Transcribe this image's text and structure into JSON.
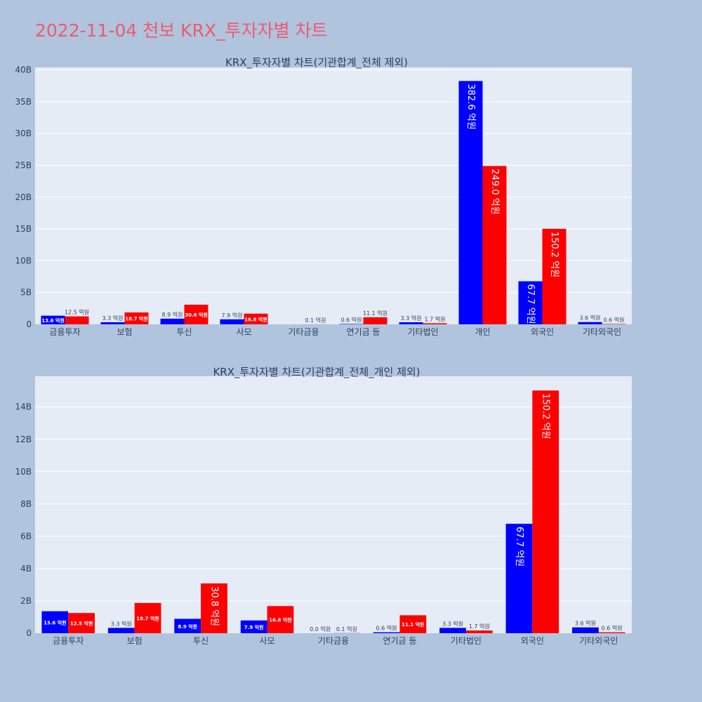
{
  "page": {
    "title": "2022-11-04 천보 KRX_투자자별 차트",
    "background": "#b0c4de",
    "title_color": "#ef5a6f"
  },
  "colors": {
    "series1": "#0000ff",
    "series2": "#ff0000",
    "plot_bg": "#e5ecf6",
    "text": "#2a3f5f"
  },
  "chart_data": [
    {
      "type": "bar",
      "title": "KRX_투자자별 차트(기관합계_전체 제외)",
      "categories": [
        "금융투자",
        "보험",
        "투신",
        "사모",
        "기타금융",
        "연기금 등",
        "기타법인",
        "개인",
        "외국인",
        "기타외국인"
      ],
      "series": [
        {
          "color": "#0000ff",
          "values": [
            1.36,
            0.33,
            0.89,
            0.79,
            0.0,
            0.06,
            0.33,
            38.26,
            6.77,
            0.36
          ],
          "labels": [
            "13.6 억원",
            "3.3 억원",
            "8.9 억원",
            "7.9 억원",
            "",
            "0.6 억원",
            "3.3 억원",
            "382.6 억원",
            "67.7 억원",
            "3.6 억원"
          ]
        },
        {
          "color": "#ff0000",
          "values": [
            1.25,
            1.87,
            3.08,
            1.68,
            0.01,
            1.11,
            0.17,
            24.9,
            15.02,
            0.06
          ],
          "labels": [
            "12.5 억원",
            "18.7 억원",
            "30.8 억원",
            "16.8 억원",
            "0.1 억원",
            "11.1 억원",
            "1.7 억원",
            "249.0 억원",
            "150.2 억원",
            "0.6 억원"
          ]
        }
      ],
      "ylim": [
        0,
        40.4
      ],
      "yticks": [
        0,
        5,
        10,
        15,
        20,
        25,
        30,
        35,
        40
      ],
      "ytick_labels": [
        "0",
        "5B",
        "10B",
        "15B",
        "20B",
        "25B",
        "30B",
        "35B",
        "40B"
      ],
      "grid": true,
      "xlabel": "",
      "ylabel": ""
    },
    {
      "type": "bar",
      "title": "KRX_투자자별 차트(기관합계_전체_개인 제외)",
      "categories": [
        "금융투자",
        "보험",
        "투신",
        "사모",
        "기타금융",
        "연기금 등",
        "기타법인",
        "외국인",
        "기타외국인"
      ],
      "series": [
        {
          "color": "#0000ff",
          "values": [
            1.36,
            0.33,
            0.89,
            0.79,
            0.0,
            0.06,
            0.33,
            6.77,
            0.36
          ],
          "labels": [
            "13.6 억원",
            "3.3 억원",
            "8.9 억원",
            "7.9 억원",
            "0.0 억원",
            "0.6 억원",
            "3.3 억원",
            "67.7 억원",
            "3.6 억원"
          ]
        },
        {
          "color": "#ff0000",
          "values": [
            1.25,
            1.87,
            3.08,
            1.68,
            0.01,
            1.11,
            0.17,
            15.02,
            0.06
          ],
          "labels": [
            "12.5 억원",
            "18.7 억원",
            "30.8 억원",
            "16.8 억원",
            "0.1 억원",
            "11.1 억원",
            "1.7 억원",
            "150.2 억원",
            "0.6 억원"
          ]
        }
      ],
      "ylim": [
        0,
        15.9
      ],
      "yticks": [
        0,
        2,
        4,
        6,
        8,
        10,
        12,
        14
      ],
      "ytick_labels": [
        "0",
        "2B",
        "4B",
        "6B",
        "8B",
        "10B",
        "12B",
        "14B"
      ],
      "grid": true,
      "xlabel": "",
      "ylabel": ""
    }
  ]
}
